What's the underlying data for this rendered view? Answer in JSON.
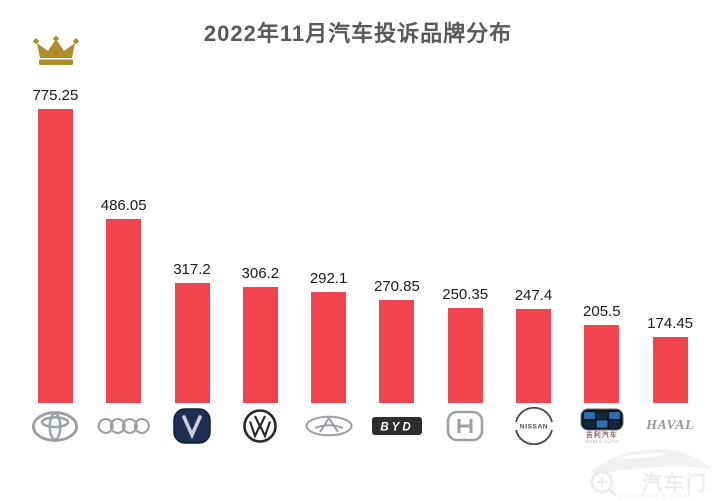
{
  "chart_data": {
    "type": "bar",
    "title": "2022年11月汽车投诉品牌分布",
    "categories": [
      "Toyota",
      "Audi",
      "Changan",
      "Volkswagen",
      "Chery",
      "BYD",
      "Honda",
      "Nissan",
      "Geely",
      "Haval"
    ],
    "values": [
      775.25,
      486.05,
      317.2,
      306.2,
      292.1,
      270.85,
      250.35,
      247.4,
      205.5,
      174.45
    ],
    "xlabel": "",
    "ylabel": "",
    "ylim": [
      0,
      800
    ],
    "grid": false,
    "legend": false,
    "value_labels_shown": true,
    "x_axis_labels": "brand logos",
    "bar_color": "#F0454F",
    "value_label_color": "#1a1a1a",
    "title_color": "#595959"
  },
  "annotations": {
    "crown": {
      "meaning": "highest complaint brand marker above first bar",
      "color": "#B08C2F"
    }
  },
  "logos": {
    "byd_text": "BYD",
    "nissan_text": "NISSAN",
    "geely_cn": "吉利汽车",
    "geely_en": "GEELY AUTO",
    "haval_text": "HAVAL"
  },
  "watermark": {
    "cn": "汽车门",
    "en": "QICHEMEN.COM",
    "color": "#ECECEC"
  }
}
